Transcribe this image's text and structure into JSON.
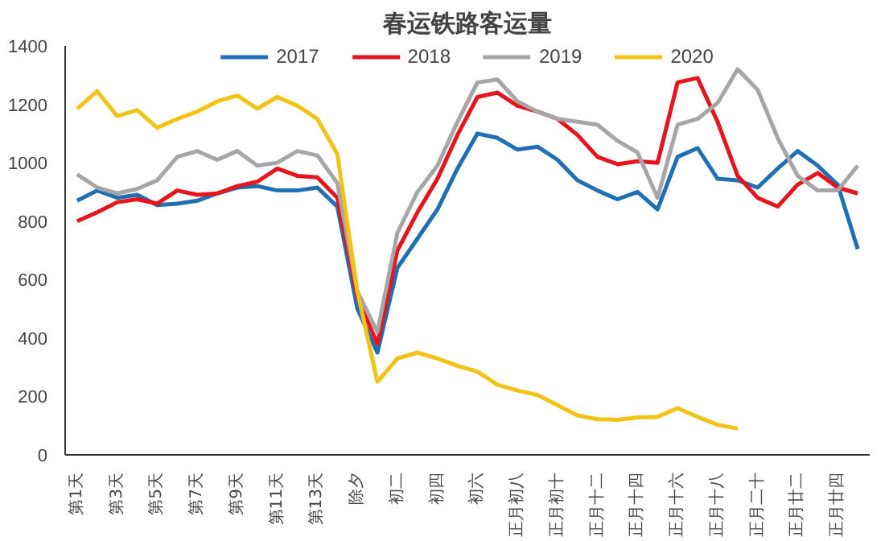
{
  "chart_data": {
    "type": "line",
    "title": "春运铁路客运量",
    "categories": [
      "第1天",
      null,
      "第3天",
      null,
      "第5天",
      null,
      "第7天",
      null,
      "第9天",
      null,
      "第11天",
      null,
      "第13天",
      null,
      "除夕",
      null,
      "初二",
      null,
      "初四",
      null,
      "初六",
      null,
      "正月初八",
      null,
      "正月初十",
      null,
      "正月十二",
      null,
      "正月十四",
      null,
      "正月十六",
      null,
      "正月十八",
      null,
      "正月二十",
      null,
      "正月廿二",
      null,
      "正月廿四",
      null
    ],
    "series": [
      {
        "name": "2017",
        "color": "#1f6fb5",
        "values": [
          870,
          905,
          880,
          890,
          855,
          860,
          870,
          895,
          915,
          920,
          905,
          905,
          915,
          850,
          500,
          350,
          640,
          740,
          840,
          980,
          1100,
          1085,
          1045,
          1055,
          1010,
          940,
          905,
          875,
          900,
          840,
          1020,
          1050,
          945,
          940,
          915,
          980,
          1040,
          990,
          925,
          705
        ]
      },
      {
        "name": "2018",
        "color": "#e8131b",
        "values": [
          800,
          830,
          865,
          875,
          860,
          905,
          890,
          895,
          920,
          935,
          980,
          955,
          950,
          880,
          540,
          380,
          700,
          830,
          945,
          1095,
          1225,
          1240,
          1195,
          1175,
          1150,
          1095,
          1020,
          995,
          1005,
          1000,
          1275,
          1290,
          1140,
          955,
          880,
          850,
          925,
          965,
          915,
          895
        ]
      },
      {
        "name": "2019",
        "color": "#a6a6a6",
        "values": [
          960,
          915,
          895,
          910,
          940,
          1020,
          1040,
          1010,
          1040,
          990,
          1000,
          1040,
          1025,
          930,
          560,
          420,
          760,
          900,
          990,
          1140,
          1275,
          1285,
          1210,
          1175,
          1150,
          1140,
          1130,
          1075,
          1035,
          880,
          1130,
          1150,
          1205,
          1320,
          1250,
          1085,
          955,
          905,
          905,
          990
        ]
      },
      {
        "name": "2020",
        "color": "#f2c315",
        "values": [
          1185,
          1245,
          1160,
          1180,
          1120,
          1150,
          1175,
          1210,
          1230,
          1185,
          1225,
          1195,
          1150,
          1030,
          560,
          250,
          330,
          350,
          330,
          305,
          285,
          240,
          220,
          205,
          170,
          135,
          122,
          120,
          128,
          130,
          160,
          130,
          103,
          90,
          null,
          null,
          null,
          null,
          null,
          null
        ]
      }
    ],
    "ylim": [
      0,
      1400
    ],
    "yticks": [
      0,
      200,
      400,
      600,
      800,
      1000,
      1200,
      1400
    ],
    "legend": "top",
    "grid": false
  }
}
